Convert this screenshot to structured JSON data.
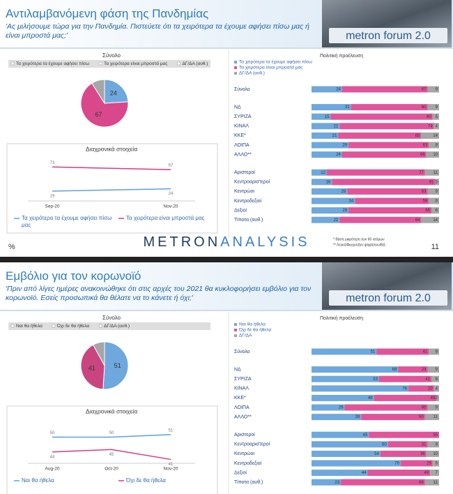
{
  "slides": [
    {
      "title": "Αντιλαμβανόμενη φάση της Πανδημίας",
      "subtitle": "'Ας μιλήσουμε τώρα για την Πανδημία. Πιστεύετε ότι τα χειρότερα τα έχουμε αφήσει πίσω μας ή είναι μπροστά μας;'",
      "logo": "metron forum 2.0",
      "pie": {
        "type": "pie",
        "title": "Σύνολο",
        "labels": [
          "Τα χειρότερα τα έχουμε αφήσει πίσω",
          "Τα χειρότερα είναι μπροστά μας",
          "ΔΓ/ΔΑ (αυθ.)"
        ],
        "values": [
          24,
          67,
          9
        ],
        "value_labels": [
          "24",
          "67",
          null
        ],
        "colors": [
          "#6fa8dc",
          "#d9488b",
          "#a6a6a6"
        ]
      },
      "trend": {
        "type": "line",
        "title": "Διαχρονικά στοιχεία",
        "x": [
          "Sep-20",
          "Nov-20"
        ],
        "ylim": [
          0,
          100
        ],
        "series": [
          {
            "name": "Τα χειρότερα τα έχουμε αφήσει πίσω μας",
            "color": "#5aa0e0",
            "values": [
              19,
              24
            ]
          },
          {
            "name": "Τα χειρότερα είναι μπροστά μας",
            "color": "#d63a82",
            "values": [
              73,
              67
            ]
          }
        ]
      },
      "bars": {
        "type": "bar",
        "title": "Πολιτική προέλευση",
        "xlim": [
          0,
          100
        ],
        "series": [
          {
            "name": "Τα χειρότερα τα έχουμε αφήσει πίσω",
            "color": "#6fa8dc"
          },
          {
            "name": "Τα χειρότερα είναι μπροστά μας",
            "color": "#e0559a"
          },
          {
            "name": "ΔΓ/ΔΑ (αυθ.)",
            "color": "#a6a6a6"
          }
        ],
        "groups": [
          {
            "categories": [
              "Σύνολο"
            ],
            "rows": [
              [
                24,
                67,
                9
              ]
            ]
          },
          {
            "categories": [
              "ΝΔ",
              "ΣΥΡΙΖΑ",
              "ΚΙΝΑΛ",
              "ΚΚΕ*",
              "ΛΟΙΠΑ",
              "ΑΛΛΟ**"
            ],
            "rows": [
              [
                31,
                60,
                9
              ],
              [
                15,
                80,
                5
              ],
              [
                22,
                74,
                4
              ],
              [
                21,
                65,
                14
              ],
              [
                29,
                63,
                8
              ],
              [
                24,
                66,
                10
              ]
            ]
          },
          {
            "categories": [
              "Αριστεροί",
              "Κεντροαριστεροί",
              "Κεντρώοι",
              "Κεντροδεξιοί",
              "Δεξιοί",
              "Τίποτα (αυθ.)"
            ],
            "rows": [
              [
                12,
                77,
                11
              ],
              [
                16,
                81,
                3
              ],
              [
                28,
                63,
                9
              ],
              [
                34,
                58,
                8
              ],
              [
                29,
                65,
                6
              ],
              [
                22,
                64,
                14
              ]
            ]
          }
        ]
      },
      "footer": {
        "unit": "%",
        "brand_left": "METRON",
        "brand_right": "ANALYSIS",
        "notes": [
          "* Βάση μικρότερη των 60 ατόμων",
          "** Λευκό/Άκυρο/Δεν ψηφίσουν/ΒΔ"
        ],
        "page": 11
      }
    },
    {
      "title": "Εμβόλιο για τον κορωνοϊό",
      "subtitle": "'Πριν από λίγες ημέρες ανακοινώθηκε ότι στις αρχές του 2021 θα κυκλοφορήσει εμβόλιο για τον κορωνοϊό. Εσείς προσωπικά θα θέλατε να το κάνετε ή όχι;'",
      "logo": "metron forum 2.0",
      "pie": {
        "type": "pie",
        "title": "Σύνολο",
        "labels": [
          "Ναι θα ήθελα",
          "Όχι δε θα ήθελα",
          "ΔΓ/ΔΑ (αυθ.)"
        ],
        "values": [
          51,
          41,
          8
        ],
        "value_labels": [
          "51",
          "41",
          null
        ],
        "colors": [
          "#6fa8dc",
          "#c9457f",
          "#a6a6a6"
        ]
      },
      "trend": {
        "type": "line",
        "title": "Διαχρονικά στοιχεία",
        "x": [
          "Aug-20",
          "Oct-20",
          "Nov-20"
        ],
        "ylim": [
          40,
          58
        ],
        "series": [
          {
            "name": "Ναι θα ήθελα",
            "color": "#5aa0e0",
            "values": [
              50,
              50,
              51
            ]
          },
          {
            "name": "Όχι δε θα ήθελα",
            "color": "#d63a82",
            "values": [
              44,
              45,
              41
            ]
          }
        ]
      },
      "bars": {
        "type": "bar",
        "title": "Πολιτική προέλευση",
        "xlim": [
          0,
          100
        ],
        "series": [
          {
            "name": "Ναι θα ήθελα",
            "color": "#6fa8dc"
          },
          {
            "name": "Όχι δε θα ήθελα",
            "color": "#e0559a"
          },
          {
            "name": "ΔΓ/ΔΑ",
            "color": "#a6a6a6"
          }
        ],
        "groups": [
          {
            "categories": [
              "Σύνολο"
            ],
            "rows": [
              [
                51,
                41,
                8
              ]
            ]
          },
          {
            "categories": [
              "ΝΔ",
              "ΣΥΡΙΖΑ",
              "ΚΙΝΑΛ",
              "ΚΚΕ*",
              "ΛΟΙΠΑ",
              "ΑΛΛΟ**"
            ],
            "rows": [
              [
                68,
                23,
                9
              ],
              [
                53,
                41,
                6
              ],
              [
                76,
                20,
                4
              ],
              [
                49,
                49,
                2
              ],
              [
                26,
                65,
                9
              ],
              [
                39,
                50,
                11
              ]
            ]
          },
          {
            "categories": [
              "Αριστεροί",
              "Κεντροαριστεροί",
              "Κεντρώοι",
              "Κεντροδεξιοί",
              "Δεξιοί",
              "Τίποτα (αυθ.)"
            ],
            "rows": [
              [
                45,
                55,
                null
              ],
              [
                60,
                31,
                9
              ],
              [
                54,
                36,
                10
              ],
              [
                70,
                25,
                5
              ],
              [
                44,
                49,
                7
              ],
              [
                23,
                66,
                11
              ]
            ]
          }
        ]
      }
    }
  ]
}
